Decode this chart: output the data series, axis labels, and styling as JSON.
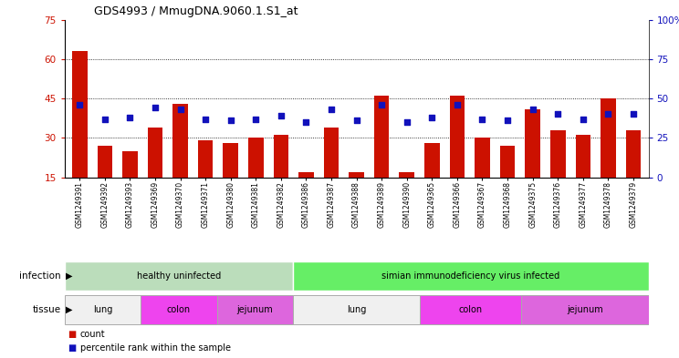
{
  "title": "GDS4993 / MmugDNA.9060.1.S1_at",
  "samples": [
    "GSM1249391",
    "GSM1249392",
    "GSM1249393",
    "GSM1249369",
    "GSM1249370",
    "GSM1249371",
    "GSM1249380",
    "GSM1249381",
    "GSM1249382",
    "GSM1249386",
    "GSM1249387",
    "GSM1249388",
    "GSM1249389",
    "GSM1249390",
    "GSM1249365",
    "GSM1249366",
    "GSM1249367",
    "GSM1249368",
    "GSM1249375",
    "GSM1249376",
    "GSM1249377",
    "GSM1249378",
    "GSM1249379"
  ],
  "counts": [
    63,
    27,
    25,
    34,
    43,
    29,
    28,
    30,
    31,
    17,
    34,
    17,
    46,
    17,
    28,
    46,
    30,
    27,
    41,
    33,
    31,
    45,
    33
  ],
  "percentiles": [
    46,
    37,
    38,
    44,
    43,
    37,
    36,
    37,
    39,
    35,
    43,
    36,
    46,
    35,
    38,
    46,
    37,
    36,
    43,
    40,
    37,
    40,
    40
  ],
  "y_min": 15,
  "y_max": 75,
  "y_ticks": [
    15,
    30,
    45,
    60,
    75
  ],
  "y2_ticks": [
    0,
    25,
    50,
    75,
    100
  ],
  "bar_color": "#cc1100",
  "dot_color": "#1111bb",
  "infection_groups": [
    {
      "label": "healthy uninfected",
      "start": 0,
      "end": 9,
      "color": "#bbddbb"
    },
    {
      "label": "simian immunodeficiency virus infected",
      "start": 9,
      "end": 23,
      "color": "#66ee66"
    }
  ],
  "tissue_groups": [
    {
      "label": "lung",
      "start": 0,
      "end": 3,
      "color": "#f0f0f0"
    },
    {
      "label": "colon",
      "start": 3,
      "end": 6,
      "color": "#ee44ee"
    },
    {
      "label": "jejunum",
      "start": 6,
      "end": 9,
      "color": "#dd66dd"
    },
    {
      "label": "lung",
      "start": 9,
      "end": 14,
      "color": "#f0f0f0"
    },
    {
      "label": "colon",
      "start": 14,
      "end": 18,
      "color": "#ee44ee"
    },
    {
      "label": "jejunum",
      "start": 18,
      "end": 23,
      "color": "#dd66dd"
    }
  ],
  "infection_label": "infection",
  "tissue_label": "tissue",
  "legend_count": "count",
  "legend_percentile": "percentile rank within the sample",
  "background_color": "#ffffff",
  "tick_label_color_left": "#cc1100",
  "tick_label_color_right": "#1111bb",
  "plot_bg": "#ffffff"
}
